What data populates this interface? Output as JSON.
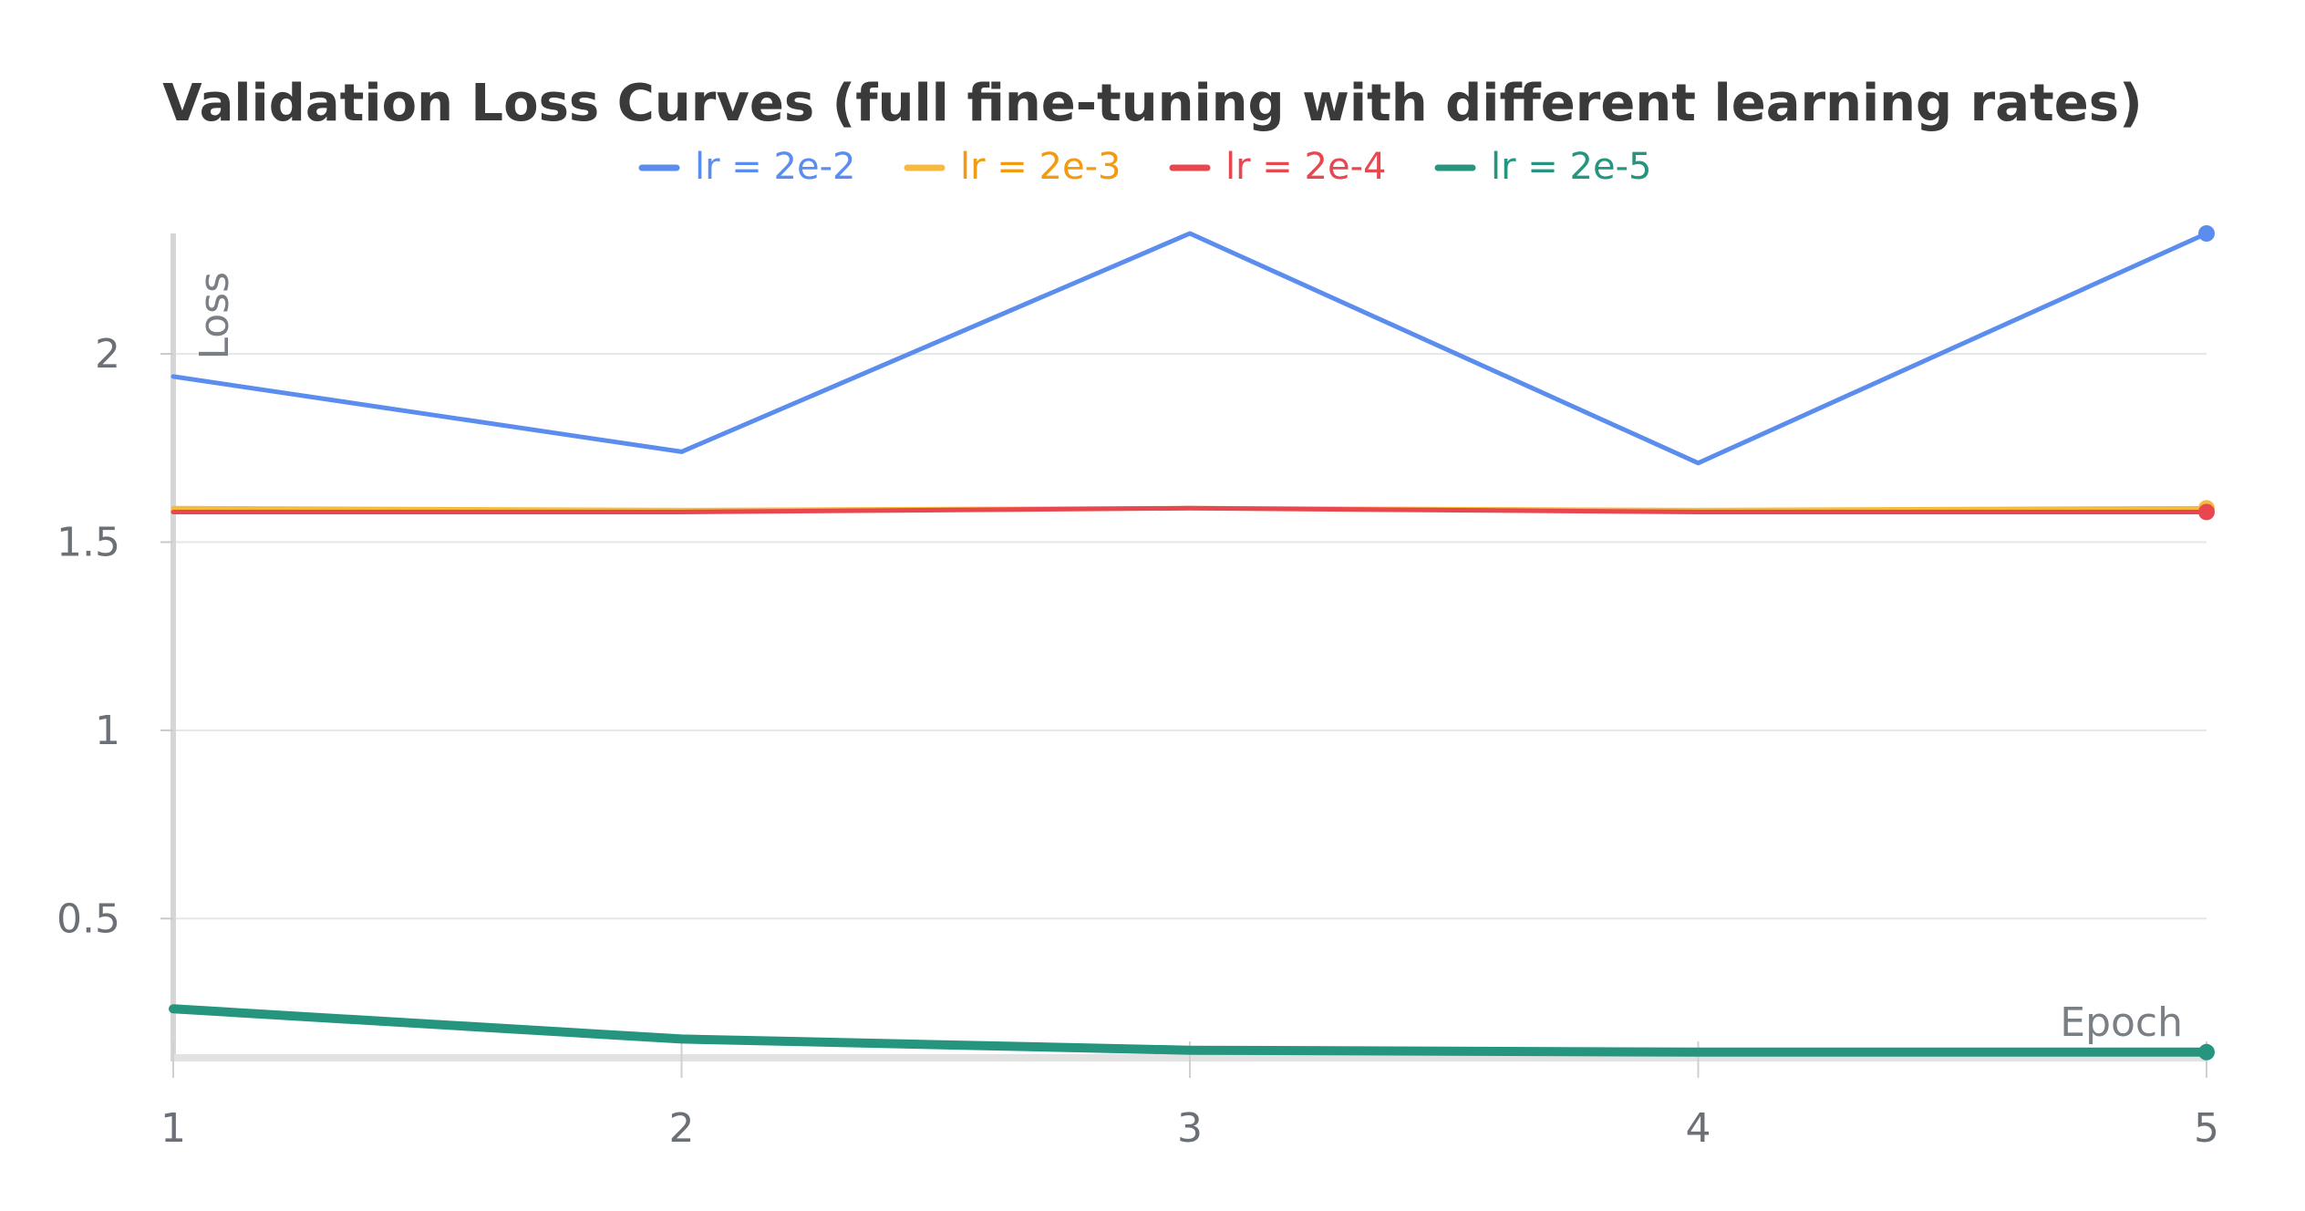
{
  "chart_data": {
    "type": "line",
    "title": "Validation Loss Curves (full fine-tuning with different learning rates)",
    "xlabel": "Epoch",
    "ylabel": "Loss",
    "x": [
      1,
      2,
      3,
      4,
      5
    ],
    "xlim": [
      1,
      5
    ],
    "ylim": [
      0.13,
      2.32
    ],
    "xticks": [
      "1",
      "2",
      "3",
      "4",
      "5"
    ],
    "yticks": [
      {
        "value": 0.5,
        "label": "0.5"
      },
      {
        "value": 1,
        "label": "1"
      },
      {
        "value": 1.5,
        "label": "1.5"
      },
      {
        "value": 2,
        "label": "2"
      }
    ],
    "grid": true,
    "legend_position": "top-center",
    "series": [
      {
        "name": "lr = 2e-2",
        "color": "#5b8def",
        "text_color": "#5b8def",
        "values": [
          1.94,
          1.74,
          2.32,
          1.71,
          2.32
        ]
      },
      {
        "name": "lr = 2e-3",
        "color": "#f7b93e",
        "text_color": "#f29b12",
        "values": [
          1.59,
          1.585,
          1.59,
          1.585,
          1.59
        ]
      },
      {
        "name": "lr = 2e-4",
        "color": "#e8474f",
        "text_color": "#e8474f",
        "values": [
          1.58,
          1.58,
          1.59,
          1.58,
          1.58
        ]
      },
      {
        "name": "lr = 2e-5",
        "color": "#26957f",
        "text_color": "#26957f",
        "values": [
          0.26,
          0.18,
          0.15,
          0.145,
          0.145
        ]
      }
    ]
  }
}
